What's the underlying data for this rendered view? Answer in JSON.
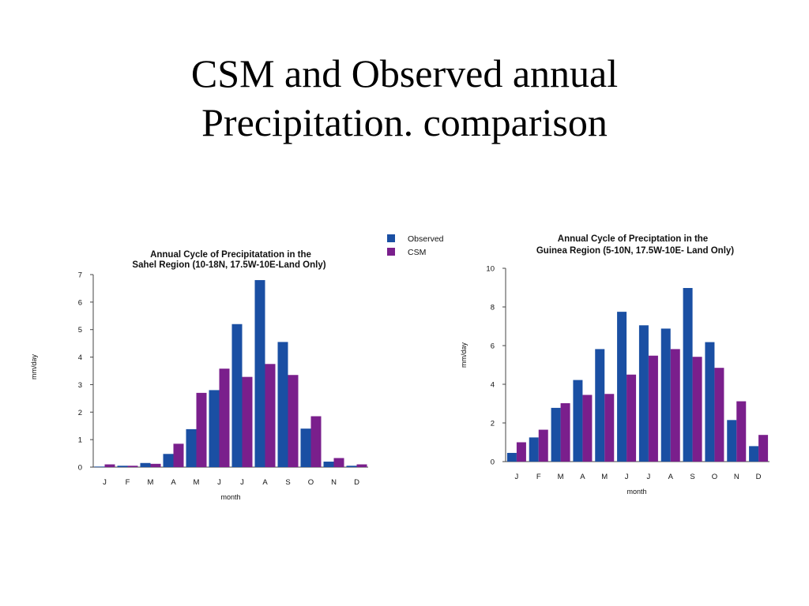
{
  "slide": {
    "title_line1": "CSM and Observed annual",
    "title_line2": "Precipitation. comparison"
  },
  "legend": {
    "items": [
      {
        "label": "Observed",
        "color": "#1a4fa3"
      },
      {
        "label": "CSM",
        "color": "#7a1f8c"
      }
    ]
  },
  "chart_data": [
    {
      "type": "bar",
      "title_line1": "Annual Cycle of  Precipitatation in the",
      "title_line2": "Sahel Region (10-18N, 17.5W-10E-Land Only)",
      "xlabel": "month",
      "ylabel": "mm/day",
      "ylim": [
        0,
        7
      ],
      "yticks": [
        0,
        1,
        2,
        3,
        4,
        5,
        6,
        7
      ],
      "categories": [
        "J",
        "F",
        "M",
        "A",
        "M",
        "J",
        "J",
        "A",
        "S",
        "O",
        "N",
        "D"
      ],
      "series": [
        {
          "name": "Observed",
          "color": "#1a4fa3",
          "values": [
            0.02,
            0.05,
            0.15,
            0.48,
            1.38,
            2.8,
            5.2,
            6.8,
            4.55,
            1.4,
            0.2,
            0.05
          ]
        },
        {
          "name": "CSM",
          "color": "#7a1f8c",
          "values": [
            0.1,
            0.05,
            0.12,
            0.85,
            2.7,
            3.58,
            3.28,
            3.75,
            3.35,
            1.85,
            0.33,
            0.1
          ]
        }
      ]
    },
    {
      "type": "bar",
      "title_line1": "Annual Cycle of Preciptation in the",
      "title_line2": "Guinea Region (5-10N, 17.5W-10E- Land Only)",
      "xlabel": "month",
      "ylabel": "mm/day",
      "ylim": [
        0,
        10
      ],
      "yticks": [
        0,
        2,
        4,
        6,
        8,
        10
      ],
      "categories": [
        "J",
        "F",
        "M",
        "A",
        "M",
        "J",
        "J",
        "A",
        "S",
        "O",
        "N",
        "D"
      ],
      "series": [
        {
          "name": "Observed",
          "color": "#1a4fa3",
          "values": [
            0.45,
            1.25,
            2.78,
            4.22,
            5.82,
            7.75,
            7.05,
            6.88,
            8.98,
            6.18,
            2.15,
            0.8
          ]
        },
        {
          "name": "CSM",
          "color": "#7a1f8c",
          "values": [
            1.0,
            1.65,
            3.02,
            3.45,
            3.5,
            4.5,
            5.48,
            5.82,
            5.42,
            4.85,
            3.12,
            1.38
          ]
        }
      ]
    }
  ]
}
